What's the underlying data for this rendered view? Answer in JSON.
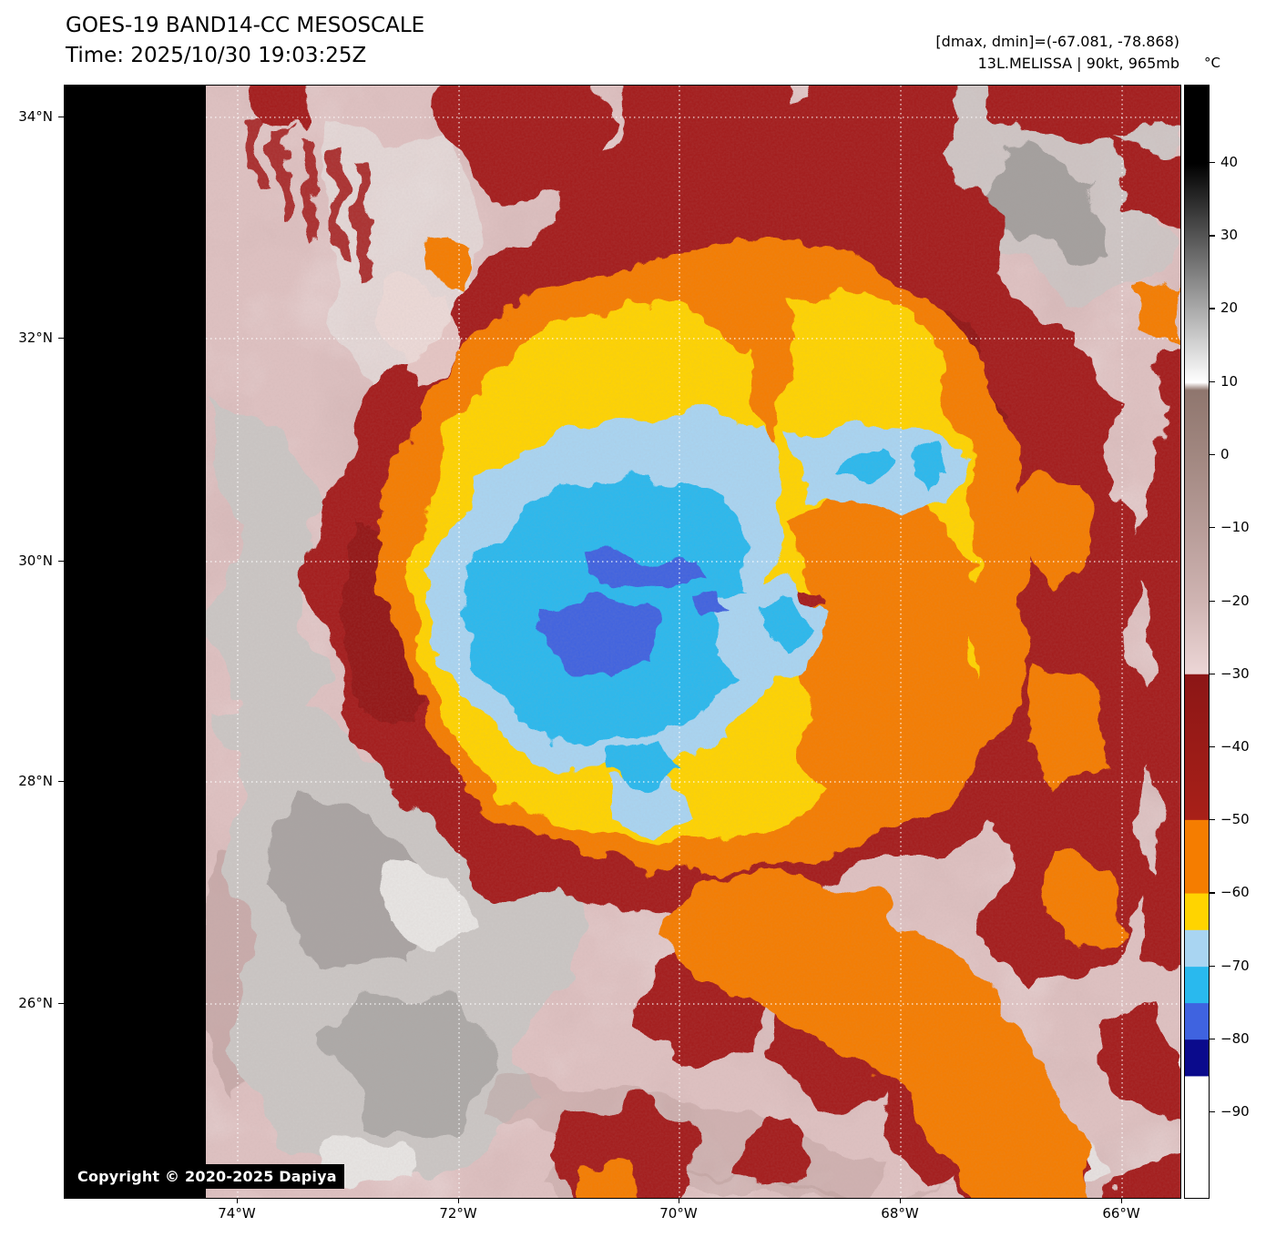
{
  "header": {
    "title": "GOES-19 BAND14-CC MESOSCALE",
    "time": "Time: 2025/10/30 19:03:25Z",
    "range": "[dmax, dmin]=(-67.081, -78.868)",
    "storm": "13L.MELISSA | 90kt, 965mb"
  },
  "map": {
    "copyright": "Copyright © 2020-2025 Dapiya",
    "lat_ticks": [
      {
        "label": "34°N",
        "at": 0.0286
      },
      {
        "label": "32°N",
        "at": 0.2275
      },
      {
        "label": "30°N",
        "at": 0.428
      },
      {
        "label": "28°N",
        "at": 0.626
      },
      {
        "label": "26°N",
        "at": 0.8257
      }
    ],
    "lon_ticks": [
      {
        "label": "74°W",
        "at": 0.1551
      },
      {
        "label": "72°W",
        "at": 0.3535
      },
      {
        "label": "70°W",
        "at": 0.551
      },
      {
        "label": "68°W",
        "at": 0.7494
      },
      {
        "label": "66°W",
        "at": 0.9478
      }
    ],
    "palette": {
      "background": "#dfc2c2",
      "nodata": "#000000",
      "gray_cloud": "#cbc7c5",
      "gray_cloud_dark": "#9a9694",
      "gray_cloud_light": "#e8e6e4",
      "pink_light": "#ecd9d7",
      "mauve_dark": "#b49593",
      "red": "#a41c1c",
      "red_dark": "#8c1616",
      "orange": "#f57d00",
      "yellow": "#ffd400",
      "light_blue": "#a9d5f2",
      "cyan": "#29b9ee",
      "royal_blue": "#3f63e0",
      "grid": "#ffffff"
    }
  },
  "colorbar": {
    "unit": "°C",
    "ticks": [
      {
        "label": "40",
        "at": 0.0696
      },
      {
        "label": "30",
        "at": 0.1353
      },
      {
        "label": "20",
        "at": 0.2009
      },
      {
        "label": "10",
        "at": 0.2666
      },
      {
        "label": "0",
        "at": 0.3323
      },
      {
        "label": "−10",
        "at": 0.3979
      },
      {
        "label": "−20",
        "at": 0.4636
      },
      {
        "label": "−30",
        "at": 0.5292
      },
      {
        "label": "−40",
        "at": 0.5949
      },
      {
        "label": "−50",
        "at": 0.6606
      },
      {
        "label": "−60",
        "at": 0.7262
      },
      {
        "label": "−70",
        "at": 0.7919
      },
      {
        "label": "−80",
        "at": 0.8575
      },
      {
        "label": "−90",
        "at": 0.9232
      }
    ],
    "stops": [
      {
        "at": 0.0,
        "color": "#000000"
      },
      {
        "at": 0.07,
        "color": "#000000"
      },
      {
        "at": 0.267,
        "color": "#ffffff"
      },
      {
        "at": 0.274,
        "color": "#8f766e"
      },
      {
        "at": 0.332,
        "color": "#a18780"
      },
      {
        "at": 0.398,
        "color": "#b79c98"
      },
      {
        "at": 0.464,
        "color": "#cfb4b2"
      },
      {
        "at": 0.529,
        "color": "#ecd6d6"
      },
      {
        "at": 0.5295,
        "color": "#8c1616"
      },
      {
        "at": 0.66,
        "color": "#a82018"
      },
      {
        "at": 0.6606,
        "color": "#f57d00"
      },
      {
        "at": 0.726,
        "color": "#f57d00"
      },
      {
        "at": 0.7266,
        "color": "#ffd400"
      },
      {
        "at": 0.759,
        "color": "#ffd400"
      },
      {
        "at": 0.7595,
        "color": "#a9d5f2"
      },
      {
        "at": 0.7919,
        "color": "#a9d5f2"
      },
      {
        "at": 0.7925,
        "color": "#29b9ee"
      },
      {
        "at": 0.8247,
        "color": "#29b9ee"
      },
      {
        "at": 0.8252,
        "color": "#3f63e0"
      },
      {
        "at": 0.8575,
        "color": "#3f63e0"
      },
      {
        "at": 0.858,
        "color": "#0a0a8c"
      },
      {
        "at": 0.8904,
        "color": "#0a0a8c"
      },
      {
        "at": 0.891,
        "color": "#ffffff"
      },
      {
        "at": 1.0,
        "color": "#ffffff"
      }
    ]
  }
}
